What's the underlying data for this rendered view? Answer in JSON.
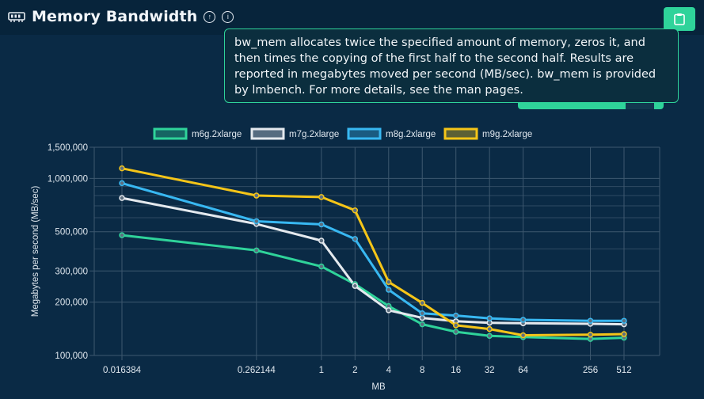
{
  "header": {
    "title": "Memory Bandwidth",
    "icons": [
      "memory-icon",
      "arrow-up-circle-icon",
      "info-circle-icon",
      "clipboard-icon"
    ],
    "accent_color": "#2fd39a"
  },
  "tooltip": {
    "text": "bw_mem allocates twice the specified amount of memory, zeros it, and then times the copying of the first half to the second half. Results are reported in megabytes moved per second (MB/sec). bw_mem is provided by lmbench. For more details, see the man pages."
  },
  "chart_data": {
    "type": "line",
    "xlabel": "MB",
    "ylabel": "Megabytes per second (MB/sec)",
    "x_scale": "log2",
    "y_scale": "log",
    "ylim": [
      100000,
      1500000
    ],
    "x": [
      0.016384,
      0.262144,
      1,
      2,
      4,
      8,
      16,
      32,
      64,
      256,
      512
    ],
    "x_tick_labels": [
      "0.016384",
      "0.262144",
      "1",
      "2",
      "4",
      "8",
      "16",
      "32",
      "64",
      "256",
      "512"
    ],
    "y_ticks": [
      100000,
      200000,
      300000,
      500000,
      1000000,
      1500000
    ],
    "y_tick_labels": [
      "100,000",
      "200,000",
      "300,000",
      "500,000",
      "1,000,000",
      "1,500,000"
    ],
    "grid": true,
    "legend_position": "top",
    "series": [
      {
        "name": "m6g.2xlarge",
        "color": "#2fd39a",
        "values": [
          478000,
          392000,
          318000,
          253000,
          190000,
          150000,
          136000,
          129000,
          127000,
          124000,
          126000
        ]
      },
      {
        "name": "m7g.2xlarge",
        "color": "#e4e9ee",
        "values": [
          775000,
          553000,
          445000,
          247000,
          180000,
          163000,
          156000,
          153000,
          152000,
          151000,
          150000
        ]
      },
      {
        "name": "m8g.2xlarge",
        "color": "#38b8f2",
        "values": [
          940000,
          573000,
          550000,
          455000,
          235000,
          173000,
          168000,
          162000,
          159000,
          157000,
          157000
        ]
      },
      {
        "name": "m9g.2xlarge",
        "color": "#f5c518",
        "values": [
          1140000,
          800000,
          785000,
          660000,
          260000,
          198000,
          148000,
          141000,
          130000,
          131000,
          132000
        ]
      }
    ]
  }
}
